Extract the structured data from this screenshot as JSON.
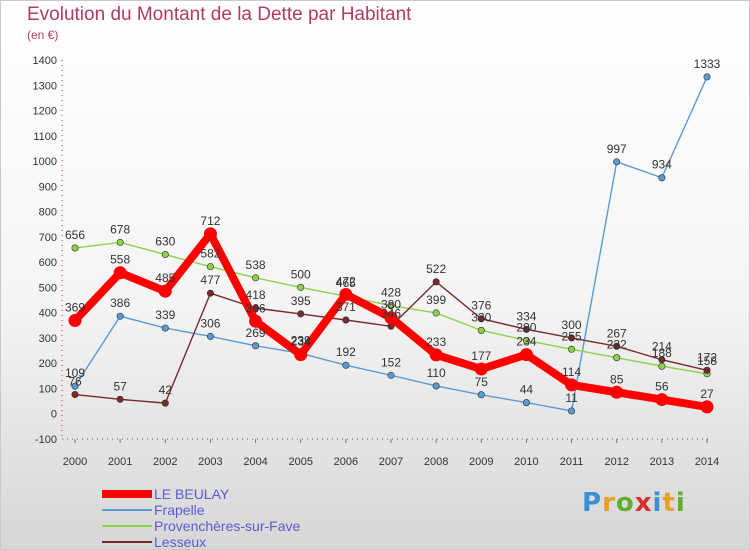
{
  "title": "Evolution du Montant de la Dette par Habitant",
  "subtitle": "(en €)",
  "logo": "Proxiti",
  "logo_colors": [
    "#3b8fd4",
    "#e8a020",
    "#5fb030",
    "#d03030",
    "#3b8fd4",
    "#e8a020",
    "#5fb030"
  ],
  "chart_data": {
    "type": "line",
    "title": "Evolution du Montant de la Dette par Habitant",
    "unit": "(en €)",
    "categories": [
      "2000",
      "2001",
      "2002",
      "2003",
      "2004",
      "2005",
      "2006",
      "2007",
      "2008",
      "2009",
      "2010",
      "2011",
      "2012",
      "2013",
      "2014"
    ],
    "ylim": [
      -100,
      1400
    ],
    "yticks": [
      -100,
      0,
      100,
      200,
      300,
      400,
      500,
      600,
      700,
      800,
      900,
      1000,
      1100,
      1200,
      1300,
      1400
    ],
    "grid": false,
    "legend_position": "bottom-left",
    "series": [
      {
        "name": "LE BEULAY",
        "color": "#ff0000",
        "values": [
          369,
          558,
          485,
          712,
          366,
          234,
          472,
          380,
          233,
          177,
          234,
          114,
          85,
          56,
          27
        ]
      },
      {
        "name": "Frapelle",
        "color": "#5b9bd5",
        "values": [
          109,
          386,
          339,
          306,
          269,
          239,
          192,
          152,
          110,
          75,
          44,
          11,
          997,
          934,
          1333
        ]
      },
      {
        "name": "Provenchères-sur-Fave",
        "color": "#8ed14b",
        "values": [
          656,
          678,
          630,
          582,
          538,
          500,
          465,
          428,
          399,
          330,
          290,
          255,
          222,
          188,
          158
        ]
      },
      {
        "name": "Lesseux",
        "color": "#7a2a2a",
        "values": [
          76,
          57,
          42,
          477,
          418,
          395,
          371,
          346,
          522,
          376,
          334,
          300,
          267,
          214,
          172
        ]
      }
    ],
    "point_labels": [
      {
        "series": 0,
        "labels": [
          "369",
          "558",
          "485",
          "712",
          "366",
          "234",
          "472",
          "380",
          "233",
          "177",
          "234",
          "114",
          "85",
          "56",
          "27"
        ]
      },
      {
        "series": 1,
        "labels": [
          "109",
          "386",
          "339",
          "306",
          "269",
          "239",
          "192",
          "152",
          "110",
          "75",
          "44",
          "11",
          "997",
          "934",
          "1333"
        ]
      },
      {
        "series": 2,
        "labels": [
          "656",
          "678",
          "630",
          "582",
          "538",
          "500",
          "465",
          "428",
          "399",
          "330",
          "290",
          "255",
          "222",
          "188",
          "158"
        ]
      },
      {
        "series": 3,
        "labels": [
          "76",
          "57",
          "42",
          "477",
          "418",
          "395",
          "371",
          "346",
          "522",
          "376",
          "334",
          "300",
          "267",
          "214",
          "172"
        ]
      }
    ]
  }
}
